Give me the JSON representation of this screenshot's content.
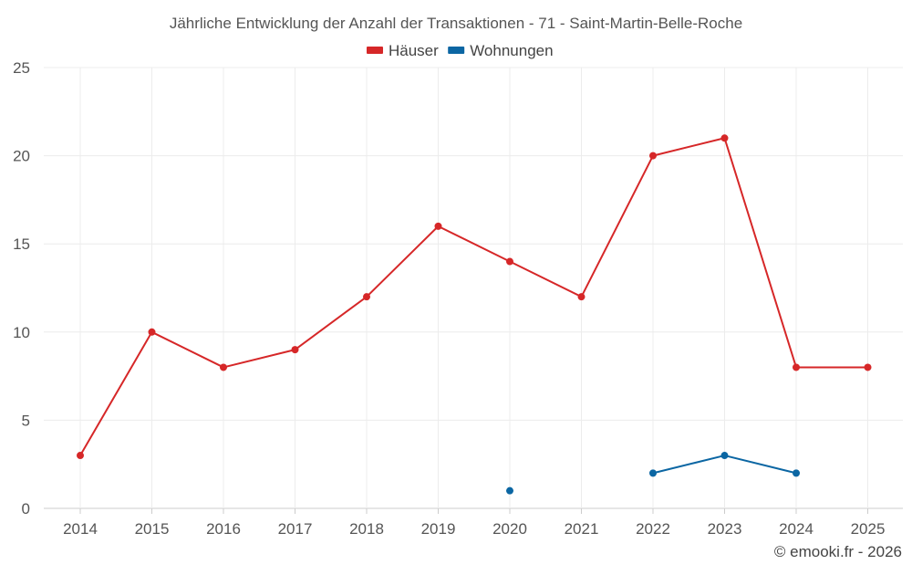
{
  "chart_data": {
    "type": "line",
    "title": "Jährliche Entwicklung der Anzahl der Transaktionen - 71 - Saint-Martin-Belle-Roche",
    "categories": [
      "2014",
      "2015",
      "2016",
      "2017",
      "2018",
      "2019",
      "2020",
      "2021",
      "2022",
      "2023",
      "2024",
      "2025"
    ],
    "series": [
      {
        "name": "Häuser",
        "color": "#d62728",
        "values": [
          3,
          10,
          8,
          9,
          12,
          16,
          14,
          12,
          20,
          21,
          8,
          8
        ]
      },
      {
        "name": "Wohnungen",
        "color": "#0b66a3",
        "values": [
          null,
          null,
          null,
          null,
          null,
          null,
          1,
          null,
          2,
          3,
          2,
          null
        ]
      }
    ],
    "ylim": [
      0,
      25
    ],
    "yticks": [
      0,
      5,
      10,
      15,
      20,
      25
    ],
    "grid": true,
    "legend_position": "top-center",
    "xlabel": "",
    "ylabel": ""
  },
  "credit": "© emooki.fr - 2026"
}
